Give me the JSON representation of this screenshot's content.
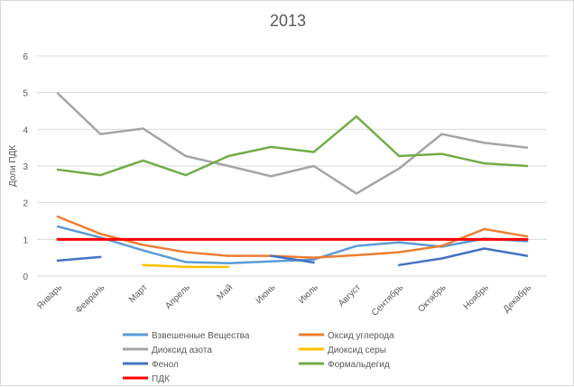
{
  "chart_data": {
    "type": "line",
    "title": "2013",
    "xlabel": "",
    "ylabel": "Доли ПДК",
    "ylim": [
      0,
      6
    ],
    "yticks": [
      "0",
      "1",
      "2",
      "3",
      "4",
      "5",
      "6"
    ],
    "grid": true,
    "legend_position": "bottom",
    "categories": [
      "Январь",
      "Февраль",
      "Март",
      "Апрель",
      "Май",
      "Июнь",
      "Июль",
      "Август",
      "Сентябрь",
      "Октябрь",
      "Ноябрь",
      "Декабрь"
    ],
    "series": [
      {
        "name": "Взвешенные Вещества",
        "color": "#5b9bd5",
        "values": [
          1.35,
          1.05,
          0.7,
          0.38,
          0.35,
          0.4,
          0.45,
          0.82,
          0.92,
          0.8,
          1.02,
          0.95
        ]
      },
      {
        "name": "Оксид углерода",
        "color": "#ed7d31",
        "values": [
          1.62,
          1.15,
          0.85,
          0.65,
          0.55,
          0.55,
          0.5,
          0.57,
          0.65,
          0.82,
          1.28,
          1.08
        ]
      },
      {
        "name": "Диоксид азота",
        "color": "#a5a5a5",
        "values": [
          4.98,
          3.87,
          4.02,
          3.27,
          3.0,
          2.72,
          3.0,
          2.25,
          2.93,
          3.87,
          3.63,
          3.5
        ]
      },
      {
        "name": "Диоксид серы",
        "color": "#ffc000",
        "values": [
          null,
          null,
          0.3,
          0.25,
          0.25,
          null,
          null,
          null,
          null,
          null,
          null,
          null
        ]
      },
      {
        "name": "Фенол",
        "color": "#4472c4",
        "values": [
          0.42,
          0.52,
          null,
          null,
          null,
          0.55,
          0.37,
          null,
          0.3,
          0.48,
          0.75,
          0.55
        ]
      },
      {
        "name": "Формальдегид",
        "color": "#70ad47",
        "values": [
          2.9,
          2.75,
          3.15,
          2.75,
          3.27,
          3.52,
          3.38,
          4.35,
          3.27,
          3.33,
          3.07,
          3.0
        ]
      },
      {
        "name": "ПДК",
        "color": "#ff0000",
        "values": [
          1,
          1,
          1,
          1,
          1,
          1,
          1,
          1,
          1,
          1,
          1,
          1
        ]
      }
    ]
  }
}
